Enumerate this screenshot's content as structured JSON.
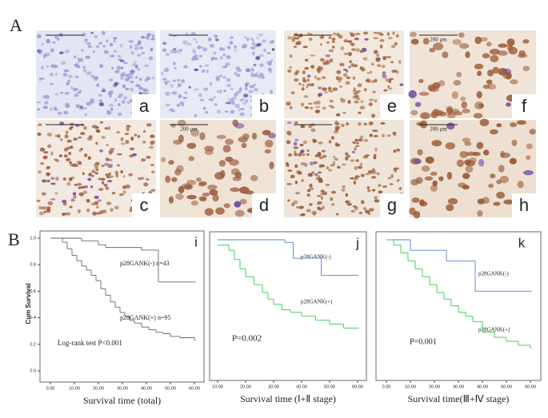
{
  "panel_a": {
    "label": "A",
    "images": [
      {
        "letter": "a"
      },
      {
        "letter": "b"
      },
      {
        "letter": "e"
      },
      {
        "letter": "f",
        "scale_bar": "200 μm"
      },
      {
        "letter": "c"
      },
      {
        "letter": "d",
        "scale_bar": "200 μm"
      },
      {
        "letter": "g"
      },
      {
        "letter": "h",
        "scale_bar": "200 μm"
      }
    ]
  },
  "panel_b": {
    "label": "B"
  },
  "chart_data": [
    {
      "type": "line",
      "step": true,
      "panel_letter": "i",
      "ylabel": "Cum Survival",
      "xlabel": "Survival time (total)",
      "annotation": "Log-rank test P<0.001",
      "xlim": [
        0,
        60
      ],
      "ylim": [
        0,
        1
      ],
      "xticks": [
        {
          "value": 0,
          "label": "0.00"
        },
        {
          "value": 10,
          "label": "10.00"
        },
        {
          "value": 20,
          "label": "20.00"
        },
        {
          "value": 30,
          "label": "30.00"
        },
        {
          "value": 40,
          "label": "40.00"
        },
        {
          "value": 50,
          "label": "50.00"
        },
        {
          "value": 60,
          "label": "60.00"
        }
      ],
      "yticks": [
        {
          "value": 0,
          "label": "0.0"
        },
        {
          "value": 0.2,
          "label": "0.2"
        },
        {
          "value": 0.4,
          "label": "0.4"
        },
        {
          "value": 0.6,
          "label": "0.6"
        },
        {
          "value": 0.8,
          "label": "0.8"
        },
        {
          "value": 1,
          "label": "1.0"
        }
      ],
      "series": [
        {
          "name": "p28GANK(-) n=43",
          "color": "#666666",
          "x": [
            0,
            13,
            20,
            23,
            38,
            45,
            60
          ],
          "values": [
            1,
            0.98,
            0.95,
            0.93,
            0.91,
            0.67,
            0.67
          ]
        },
        {
          "name": "p28GANK(+) n=95",
          "color": "#666666",
          "x": [
            0,
            5,
            7,
            9,
            11,
            13,
            15,
            17,
            19,
            21,
            23,
            25,
            27,
            29,
            31,
            33,
            35,
            38,
            41,
            44,
            47,
            50,
            54,
            60
          ],
          "values": [
            1,
            0.97,
            0.92,
            0.87,
            0.83,
            0.79,
            0.76,
            0.72,
            0.68,
            0.62,
            0.57,
            0.52,
            0.48,
            0.44,
            0.41,
            0.38,
            0.36,
            0.33,
            0.31,
            0.29,
            0.28,
            0.26,
            0.25,
            0.23
          ]
        }
      ]
    },
    {
      "type": "line",
      "step": true,
      "panel_letter": "j",
      "xlabel": "Survival time (Ⅰ+Ⅱ stage)",
      "annotation": "P=0.002",
      "xlim": [
        10,
        60
      ],
      "ylim": [
        0,
        1
      ],
      "xticks": [
        {
          "value": 10,
          "label": "10.00"
        },
        {
          "value": 20,
          "label": "20.00"
        },
        {
          "value": 30,
          "label": "30.00"
        },
        {
          "value": 40,
          "label": "40.00"
        },
        {
          "value": 50,
          "label": "50.00"
        },
        {
          "value": 60,
          "label": "60.00"
        }
      ],
      "series": [
        {
          "name": "p28GANK(-)",
          "color": "#5b7fd3",
          "x": [
            10,
            34,
            37,
            47,
            60
          ],
          "values": [
            1,
            0.98,
            0.86,
            0.73,
            0.73
          ]
        },
        {
          "name": "p28GANK(+)",
          "color": "#33c94a",
          "x": [
            10,
            14,
            16,
            18,
            20,
            23,
            26,
            28,
            30,
            33,
            36,
            40,
            45,
            50,
            55,
            60
          ],
          "values": [
            0.96,
            0.92,
            0.85,
            0.78,
            0.72,
            0.66,
            0.6,
            0.55,
            0.51,
            0.47,
            0.45,
            0.42,
            0.39,
            0.36,
            0.33,
            0.33
          ]
        }
      ]
    },
    {
      "type": "line",
      "step": true,
      "panel_letter": "k",
      "xlabel": "Survival time(Ⅲ+Ⅳ stage)",
      "annotation": "P=0.001",
      "xlim": [
        0,
        60
      ],
      "ylim": [
        0,
        1
      ],
      "xticks": [
        {
          "value": 0,
          "label": "0.00"
        },
        {
          "value": 10,
          "label": "10.00"
        },
        {
          "value": 20,
          "label": "20.00"
        },
        {
          "value": 30,
          "label": "30.00"
        },
        {
          "value": 40,
          "label": "40.00"
        },
        {
          "value": 50,
          "label": "50.00"
        },
        {
          "value": 60,
          "label": "60.00"
        }
      ],
      "series": [
        {
          "name": "p28GANK(-)",
          "color": "#5b7fd3",
          "x": [
            0,
            10,
            25,
            37,
            60
          ],
          "values": [
            1,
            0.92,
            0.84,
            0.61,
            0.61
          ]
        },
        {
          "name": "p28GANK(+)",
          "color": "#33c94a",
          "x": [
            0,
            3,
            6,
            9,
            12,
            15,
            18,
            21,
            24,
            27,
            30,
            33,
            36,
            40,
            45,
            50,
            55,
            60
          ],
          "values": [
            1,
            0.96,
            0.9,
            0.84,
            0.78,
            0.72,
            0.66,
            0.6,
            0.55,
            0.5,
            0.45,
            0.42,
            0.38,
            0.3,
            0.26,
            0.23,
            0.2,
            0.18
          ]
        }
      ]
    }
  ]
}
